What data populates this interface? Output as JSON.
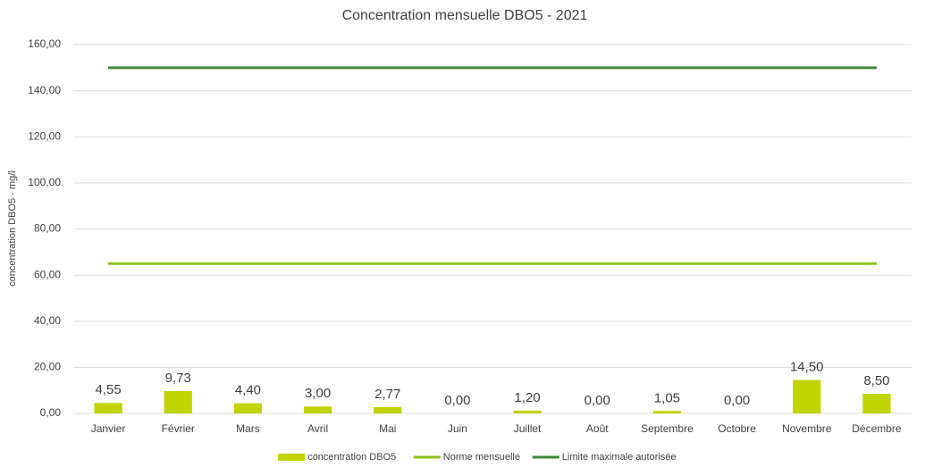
{
  "chart_data": {
    "type": "combo",
    "title": "Concentration mensuelle DBO5 - 2021",
    "y_label": "concentration DBO5  - mg/l",
    "categories": [
      "Janvier",
      "Février",
      "Mars",
      "Avril",
      "Mai",
      "Juin",
      "Juillet",
      "Août",
      "Septembre",
      "Octobre",
      "Novembre",
      "Décembre"
    ],
    "series": [
      {
        "name": "concentration DBO5",
        "type": "bar",
        "color": "#c0d400",
        "values": [
          4.55,
          9.73,
          4.4,
          3.0,
          2.77,
          0,
          1.2,
          0,
          1.05,
          0,
          14.5,
          8.5
        ],
        "value_labels": [
          "4,55",
          "9,73",
          "4,40",
          "3,00",
          "2,77",
          "0,00",
          "1,20",
          "0,00",
          "1,05",
          "0,00",
          "14,50",
          "8,50"
        ]
      },
      {
        "name": "Norme mensuelle",
        "type": "line",
        "color": "#8dc21f",
        "values": [
          65,
          65,
          65,
          65,
          65,
          65,
          65,
          65,
          65,
          65,
          65,
          65
        ]
      },
      {
        "name": "Limite maximale autorisée",
        "type": "line",
        "color": "#3d8b37",
        "values": [
          150,
          150,
          150,
          150,
          150,
          150,
          150,
          150,
          150,
          150,
          150,
          150
        ]
      }
    ],
    "ylim": [
      0,
      160
    ],
    "yticks": [
      {
        "value": 0,
        "label": "0,00"
      },
      {
        "value": 20,
        "label": "20,00"
      },
      {
        "value": 40,
        "label": "40,00"
      },
      {
        "value": 60,
        "label": "60,00"
      },
      {
        "value": 80,
        "label": "80,00"
      },
      {
        "value": 100,
        "label": "100,00"
      },
      {
        "value": 120,
        "label": "120,00"
      },
      {
        "value": 140,
        "label": "140,00"
      },
      {
        "value": 160,
        "label": "160,00"
      }
    ],
    "grid": true,
    "legend": "bottom"
  }
}
